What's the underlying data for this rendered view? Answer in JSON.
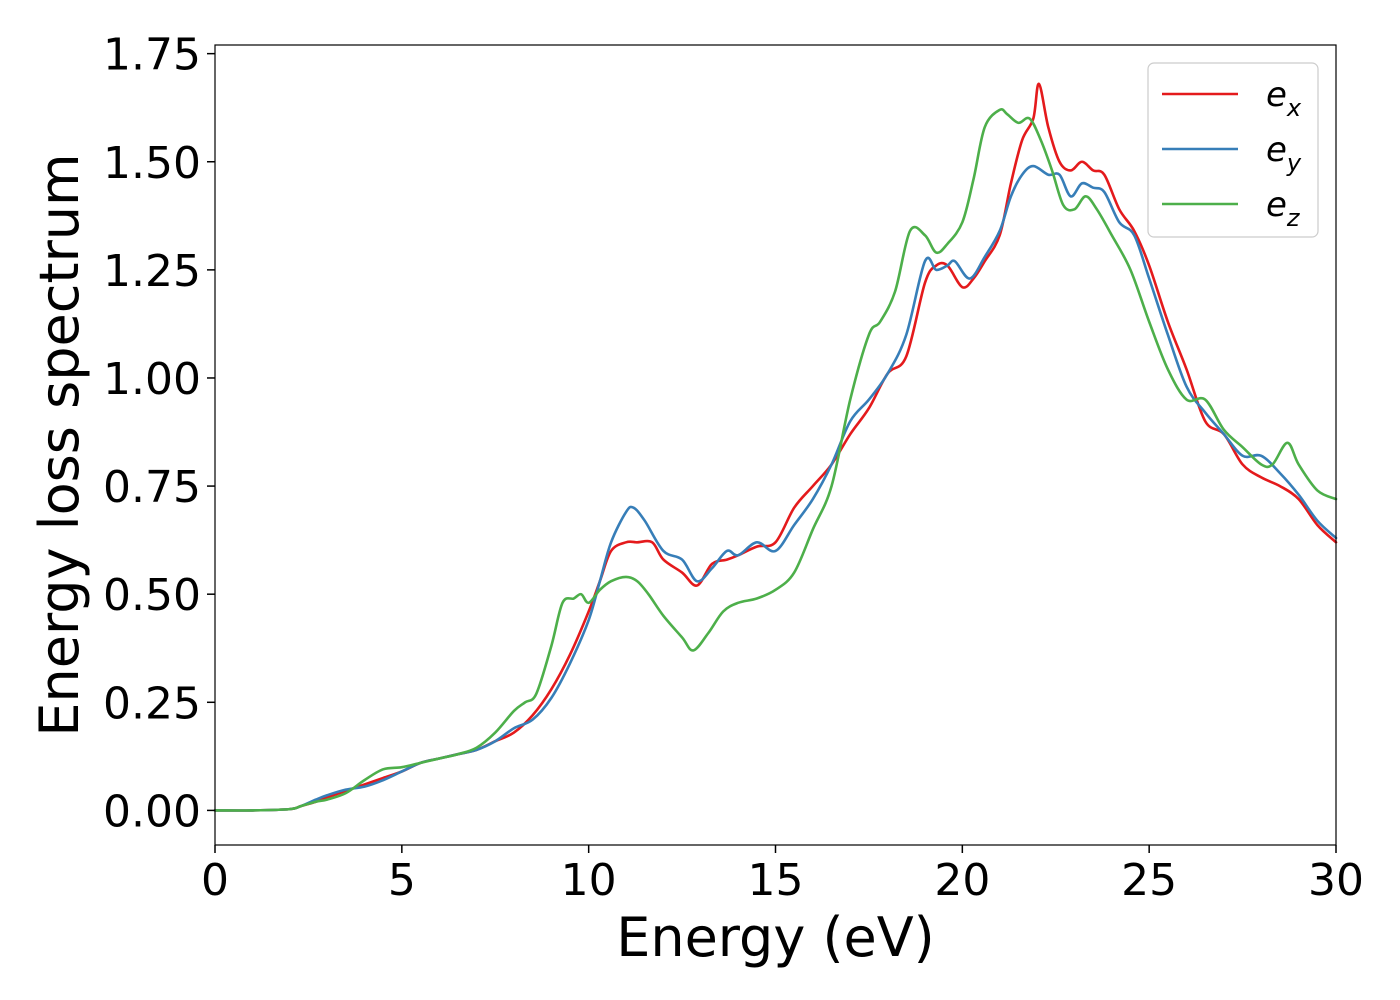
{
  "chart_data": {
    "type": "line",
    "title": "",
    "xlabel": "Energy (eV)",
    "ylabel": "Energy loss spectrum",
    "xlim": [
      0,
      30
    ],
    "ylim": [
      -0.08,
      1.77
    ],
    "xticks": [
      0,
      5,
      10,
      15,
      20,
      25,
      30
    ],
    "xtick_labels": [
      "0",
      "5",
      "10",
      "15",
      "20",
      "25",
      "30"
    ],
    "yticks": [
      0.0,
      0.25,
      0.5,
      0.75,
      1.0,
      1.25,
      1.5,
      1.75
    ],
    "ytick_labels": [
      "0.00",
      "0.25",
      "0.50",
      "0.75",
      "1.00",
      "1.25",
      "1.50",
      "1.75"
    ],
    "grid": false,
    "legend_position": "top-right",
    "series": [
      {
        "name": "e",
        "subscript": "x",
        "color": "#e41a1c",
        "x": [
          0,
          1,
          2,
          2.3,
          2.7,
          3,
          3.5,
          4,
          4.5,
          5,
          5.5,
          6,
          6.5,
          7,
          7.5,
          8,
          8.5,
          9,
          9.5,
          10,
          10.3,
          10.6,
          11,
          11.3,
          11.7,
          12,
          12.5,
          12.9,
          13.3,
          13.7,
          14,
          14.5,
          15,
          15.5,
          16,
          16.5,
          17,
          17.5,
          18,
          18.5,
          19,
          19.3,
          19.6,
          20,
          20.3,
          20.6,
          21,
          21.3,
          21.6,
          21.9,
          22.05,
          22.3,
          22.6,
          22.9,
          23.2,
          23.5,
          23.8,
          24.2,
          24.6,
          25,
          25.5,
          26,
          26.5,
          27,
          27.5,
          28,
          28.5,
          29,
          29.5,
          30
        ],
        "y": [
          0,
          0,
          0.003,
          0.01,
          0.02,
          0.03,
          0.045,
          0.06,
          0.075,
          0.09,
          0.11,
          0.12,
          0.13,
          0.14,
          0.16,
          0.18,
          0.22,
          0.28,
          0.36,
          0.46,
          0.53,
          0.6,
          0.62,
          0.62,
          0.62,
          0.58,
          0.55,
          0.52,
          0.57,
          0.58,
          0.59,
          0.61,
          0.62,
          0.7,
          0.75,
          0.8,
          0.87,
          0.93,
          1.01,
          1.05,
          1.22,
          1.26,
          1.26,
          1.21,
          1.23,
          1.27,
          1.33,
          1.45,
          1.55,
          1.6,
          1.68,
          1.58,
          1.5,
          1.48,
          1.5,
          1.48,
          1.47,
          1.39,
          1.34,
          1.26,
          1.13,
          1.02,
          0.9,
          0.87,
          0.8,
          0.77,
          0.75,
          0.72,
          0.66,
          0.62
        ]
      },
      {
        "name": "e",
        "subscript": "y",
        "color": "#377eb8",
        "x": [
          0,
          1,
          2,
          2.3,
          2.7,
          3,
          3.5,
          4,
          4.5,
          5,
          5.5,
          6,
          6.5,
          7,
          7.5,
          8,
          8.5,
          9,
          9.5,
          10,
          10.3,
          10.6,
          11,
          11.2,
          11.5,
          12,
          12.5,
          12.9,
          13.3,
          13.7,
          14,
          14.5,
          15,
          15.5,
          16,
          16.5,
          17,
          17.5,
          18,
          18.5,
          19,
          19.3,
          19.6,
          19.8,
          20.2,
          20.6,
          21,
          21.3,
          21.6,
          21.9,
          22.3,
          22.6,
          22.9,
          23.2,
          23.5,
          23.8,
          24.2,
          24.6,
          25,
          25.5,
          26,
          26.5,
          27,
          27.5,
          28,
          28.5,
          29,
          29.5,
          30
        ],
        "y": [
          0,
          0,
          0.003,
          0.01,
          0.025,
          0.035,
          0.048,
          0.055,
          0.07,
          0.09,
          0.11,
          0.12,
          0.13,
          0.14,
          0.16,
          0.19,
          0.21,
          0.26,
          0.34,
          0.44,
          0.53,
          0.62,
          0.69,
          0.7,
          0.67,
          0.6,
          0.58,
          0.53,
          0.56,
          0.6,
          0.59,
          0.62,
          0.6,
          0.66,
          0.72,
          0.8,
          0.9,
          0.95,
          1.01,
          1.1,
          1.27,
          1.25,
          1.26,
          1.27,
          1.23,
          1.28,
          1.34,
          1.42,
          1.47,
          1.49,
          1.47,
          1.47,
          1.42,
          1.45,
          1.44,
          1.43,
          1.36,
          1.33,
          1.23,
          1.1,
          0.98,
          0.92,
          0.87,
          0.82,
          0.82,
          0.78,
          0.73,
          0.67,
          0.63
        ]
      },
      {
        "name": "e",
        "subscript": "z",
        "color": "#4daf4a",
        "x": [
          0,
          1,
          2,
          2.3,
          2.7,
          3,
          3.5,
          4,
          4.5,
          5,
          5.5,
          6,
          6.5,
          7,
          7.5,
          8,
          8.3,
          8.6,
          9,
          9.3,
          9.6,
          9.8,
          10,
          10.3,
          10.6,
          11,
          11.3,
          11.6,
          12,
          12.5,
          12.8,
          13.2,
          13.6,
          14,
          14.5,
          15,
          15.5,
          16,
          16.5,
          17,
          17.5,
          17.8,
          18.2,
          18.6,
          19,
          19.3,
          19.6,
          20,
          20.3,
          20.6,
          21,
          21.2,
          21.5,
          21.8,
          22.1,
          22.4,
          22.7,
          23,
          23.3,
          23.6,
          24,
          24.5,
          25,
          25.5,
          26,
          26.5,
          27,
          27.5,
          28,
          28.3,
          28.7,
          29,
          29.5,
          30
        ],
        "y": [
          0,
          0,
          0.003,
          0.01,
          0.02,
          0.025,
          0.04,
          0.07,
          0.095,
          0.1,
          0.11,
          0.12,
          0.13,
          0.145,
          0.18,
          0.23,
          0.25,
          0.27,
          0.38,
          0.48,
          0.49,
          0.5,
          0.48,
          0.51,
          0.53,
          0.54,
          0.53,
          0.5,
          0.45,
          0.4,
          0.37,
          0.41,
          0.46,
          0.48,
          0.49,
          0.51,
          0.55,
          0.65,
          0.75,
          0.95,
          1.1,
          1.13,
          1.2,
          1.34,
          1.33,
          1.29,
          1.31,
          1.36,
          1.46,
          1.58,
          1.62,
          1.61,
          1.59,
          1.6,
          1.55,
          1.48,
          1.4,
          1.39,
          1.42,
          1.39,
          1.33,
          1.25,
          1.13,
          1.02,
          0.95,
          0.95,
          0.88,
          0.84,
          0.8,
          0.8,
          0.85,
          0.8,
          0.74,
          0.72
        ]
      }
    ]
  }
}
